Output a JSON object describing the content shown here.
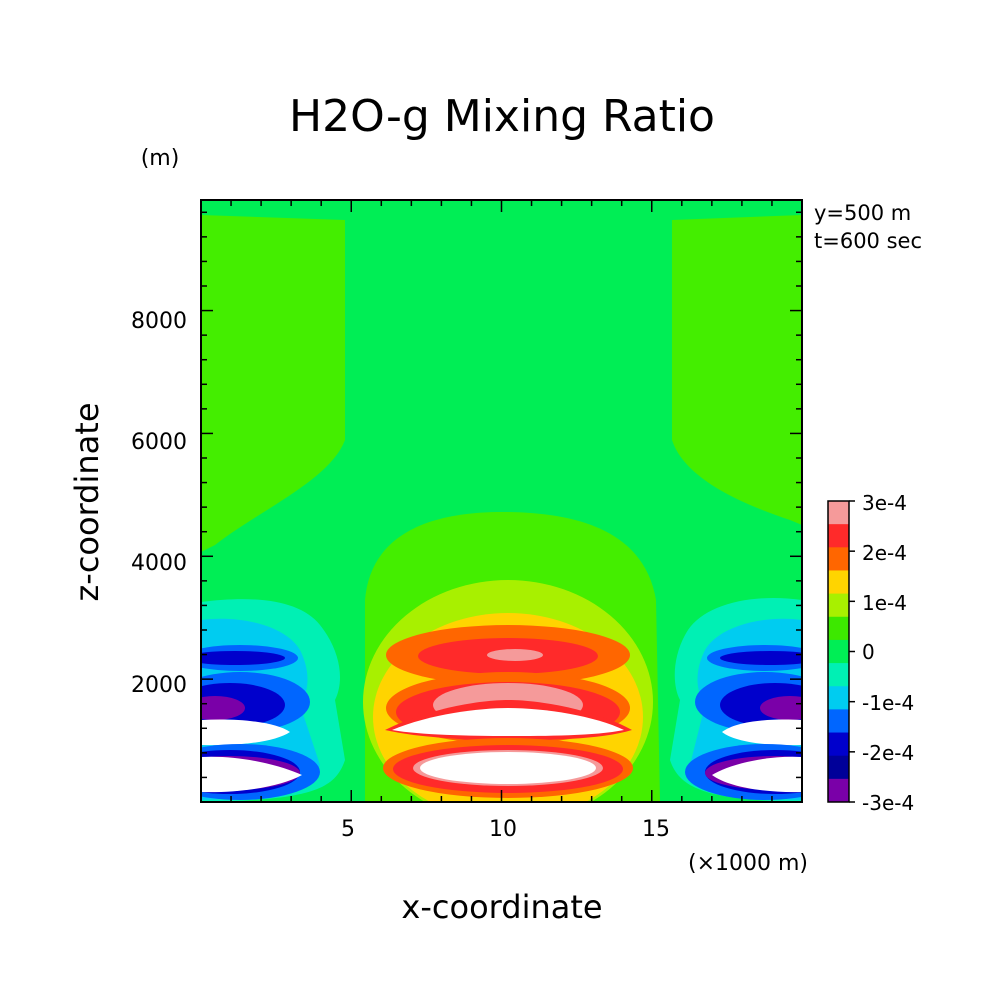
{
  "chart_data": {
    "type": "heatmap",
    "title": "H2O-g Mixing Ratio",
    "xlabel": "x-coordinate",
    "ylabel": "z-coordinate",
    "x_unit": "(×1000 m)",
    "y_unit": "(m)",
    "annotations": [
      "y=500 m",
      "t=600 sec"
    ],
    "xlim": [
      0,
      20
    ],
    "ylim": [
      0,
      9800
    ],
    "xticks": [
      5,
      10,
      15
    ],
    "yticks": [
      2000,
      4000,
      6000,
      8000
    ],
    "xtick_labels": [
      "5",
      "10",
      "15"
    ],
    "ytick_labels": [
      "2000",
      "4000",
      "6000",
      "8000"
    ],
    "colorbar": {
      "labels": [
        "3e-4",
        "2e-4",
        "1e-4",
        "0",
        "-1e-4",
        "-2e-4",
        "-3e-4"
      ],
      "colors": [
        "#f59a9a",
        "#ff2a2a",
        "#ff6600",
        "#ffd400",
        "#a8f000",
        "#3de800",
        "#00ee55",
        "#00f0b4",
        "#00ccf0",
        "#0066ff",
        "#0000cc",
        "#000099",
        "#7a00a8"
      ],
      "background_color": "#44ee00"
    }
  }
}
